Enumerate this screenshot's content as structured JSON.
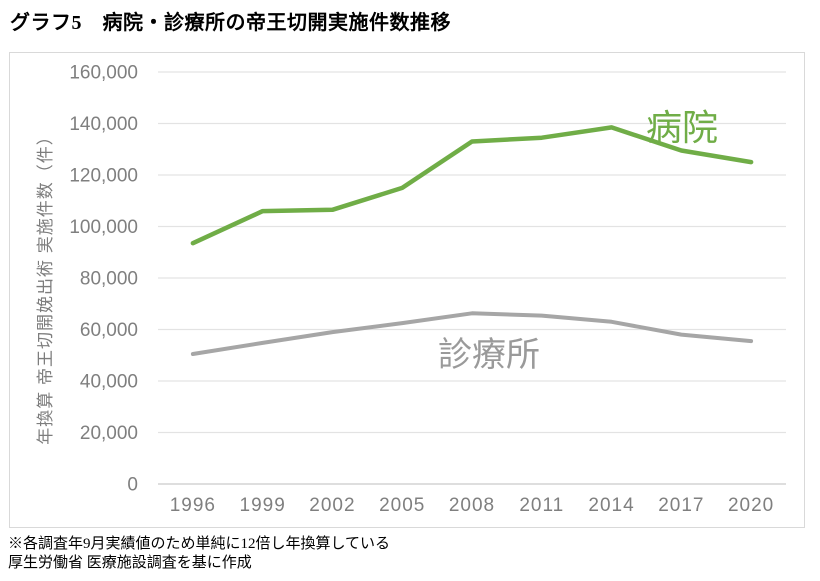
{
  "page": {
    "title": "グラフ5　病院・診療所の帝王切開実施件数推移",
    "footnote_line1": "※各調査年9月実績値のため単純に12倍し年換算している",
    "footnote_line2": "厚生労働省 医療施設調査を基に作成"
  },
  "colors": {
    "hospital_green": "#70ad47",
    "clinic_gray": "#a6a6a6",
    "gridline": "#e3e3e3",
    "axis_line": "#c9c9c9",
    "tick_text": "#7f7f7f",
    "frame_border": "#d9d9d9",
    "title_text": "#000000"
  },
  "chart_data": {
    "type": "line",
    "title": "グラフ5　病院・診療所の帝王切開実施件数推移",
    "categories": [
      "1996",
      "1999",
      "2002",
      "2005",
      "2008",
      "2011",
      "2014",
      "2017",
      "2020"
    ],
    "series": [
      {
        "name": "病院",
        "color": "#70ad47",
        "stroke_width": 4.5,
        "values": [
          93500,
          106000,
          106500,
          115000,
          133000,
          134500,
          138500,
          129500,
          125000
        ]
      },
      {
        "name": "診療所",
        "color": "#a6a6a6",
        "stroke_width": 4,
        "values": [
          50500,
          54800,
          59000,
          62500,
          66300,
          65400,
          63000,
          58000,
          55500
        ]
      }
    ],
    "xlabel": "",
    "ylabel": "年換算 帝王切開娩出術 実施件数（件）",
    "ylim": [
      0,
      160000
    ],
    "ytick_step": 20000,
    "ytick_labels": [
      "0",
      "20,000",
      "40,000",
      "60,000",
      "80,000",
      "100,000",
      "120,000",
      "140,000",
      "160,000"
    ],
    "grid": true,
    "legend": "inline-series-labels"
  }
}
